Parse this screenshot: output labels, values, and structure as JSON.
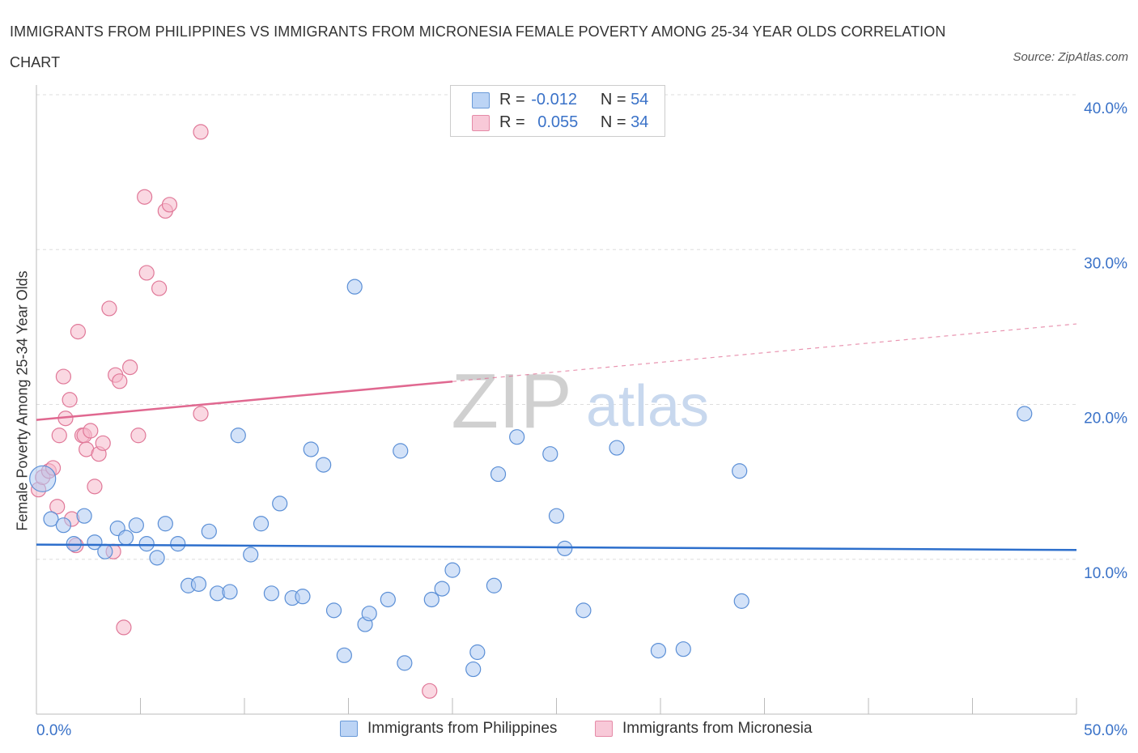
{
  "title": "IMMIGRANTS FROM PHILIPPINES VS IMMIGRANTS FROM MICRONESIA FEMALE POVERTY AMONG 25-34 YEAR OLDS CORRELATION CHART",
  "source": "Source: ZipAtlas.com",
  "watermark": {
    "zip": "ZIP",
    "atlas": "atlas"
  },
  "legend": {
    "r_label": "R =",
    "n_label": "N =",
    "rows": [
      {
        "r": "-0.012",
        "n": "54"
      },
      {
        "r": "0.055",
        "n": "34"
      }
    ]
  },
  "colors": {
    "blue_fill": "#aecbf2",
    "blue_stroke": "#5b8fd6",
    "blue_line": "#2d6fcc",
    "pink_fill": "#f5b8cb",
    "pink_stroke": "#e07898",
    "pink_line": "#e06890",
    "axis_text": "#3a72c8"
  },
  "chart_data": {
    "type": "scatter",
    "title": "IMMIGRANTS FROM PHILIPPINES VS IMMIGRANTS FROM MICRONESIA FEMALE POVERTY AMONG 25-34 YEAR OLDS CORRELATION CHART",
    "xlabel": "",
    "ylabel": "Female Poverty Among 25-34 Year Olds",
    "xlim": [
      0,
      50
    ],
    "ylim": [
      0,
      40
    ],
    "x_tick_labels": [
      "0.0%",
      "50.0%"
    ],
    "y_ticks": [
      10,
      20,
      30,
      40
    ],
    "y_tick_labels": [
      "10.0%",
      "20.0%",
      "30.0%",
      "40.0%"
    ],
    "grid": true,
    "legend_position": "top-center",
    "series": [
      {
        "name": "Immigrants from Philippines",
        "color": "blue",
        "r": -0.012,
        "n": 54,
        "trend": {
          "x": [
            0,
            50
          ],
          "y": [
            10.95,
            10.6
          ],
          "dashed_from": null
        },
        "points": [
          [
            0.3,
            15.2
          ],
          [
            0.7,
            12.6
          ],
          [
            1.3,
            12.2
          ],
          [
            1.8,
            11.0
          ],
          [
            2.3,
            12.8
          ],
          [
            2.8,
            11.1
          ],
          [
            3.3,
            10.5
          ],
          [
            3.9,
            12.0
          ],
          [
            4.3,
            11.4
          ],
          [
            4.8,
            12.2
          ],
          [
            5.3,
            11.0
          ],
          [
            5.8,
            10.1
          ],
          [
            6.2,
            12.3
          ],
          [
            6.8,
            11.0
          ],
          [
            7.3,
            8.3
          ],
          [
            7.8,
            8.4
          ],
          [
            8.3,
            11.8
          ],
          [
            8.7,
            7.8
          ],
          [
            9.3,
            7.9
          ],
          [
            9.7,
            18.0
          ],
          [
            10.3,
            10.3
          ],
          [
            10.8,
            12.3
          ],
          [
            11.3,
            7.8
          ],
          [
            11.7,
            13.6
          ],
          [
            12.3,
            7.5
          ],
          [
            12.8,
            7.6
          ],
          [
            13.2,
            17.1
          ],
          [
            13.8,
            16.1
          ],
          [
            14.3,
            6.7
          ],
          [
            14.8,
            3.8
          ],
          [
            15.3,
            27.6
          ],
          [
            15.8,
            5.8
          ],
          [
            16.0,
            6.5
          ],
          [
            16.9,
            7.4
          ],
          [
            17.5,
            17.0
          ],
          [
            17.7,
            3.3
          ],
          [
            19.0,
            7.4
          ],
          [
            19.5,
            8.1
          ],
          [
            20.0,
            9.3
          ],
          [
            21.0,
            2.9
          ],
          [
            21.2,
            4.0
          ],
          [
            22.0,
            8.3
          ],
          [
            22.2,
            15.5
          ],
          [
            23.1,
            17.9
          ],
          [
            24.7,
            16.8
          ],
          [
            25.0,
            12.8
          ],
          [
            25.4,
            10.7
          ],
          [
            26.3,
            6.7
          ],
          [
            27.9,
            17.2
          ],
          [
            29.9,
            4.1
          ],
          [
            31.1,
            4.2
          ],
          [
            33.8,
            15.7
          ],
          [
            33.9,
            7.3
          ],
          [
            47.5,
            19.4
          ]
        ]
      },
      {
        "name": "Immigrants from Micronesia",
        "color": "pink",
        "r": 0.055,
        "n": 34,
        "trend": {
          "x": [
            0,
            50
          ],
          "y": [
            19.0,
            25.2
          ],
          "dashed_from": 20
        },
        "points": [
          [
            0.1,
            14.5
          ],
          [
            0.3,
            15.3
          ],
          [
            0.6,
            15.7
          ],
          [
            0.8,
            15.9
          ],
          [
            1.0,
            13.4
          ],
          [
            1.1,
            18.0
          ],
          [
            1.3,
            21.8
          ],
          [
            1.4,
            19.1
          ],
          [
            1.6,
            20.3
          ],
          [
            1.7,
            12.6
          ],
          [
            1.9,
            10.9
          ],
          [
            2.0,
            24.7
          ],
          [
            2.2,
            18.0
          ],
          [
            2.3,
            18.0
          ],
          [
            2.4,
            17.1
          ],
          [
            2.6,
            18.3
          ],
          [
            2.8,
            14.7
          ],
          [
            3.0,
            16.8
          ],
          [
            3.2,
            17.5
          ],
          [
            3.5,
            26.2
          ],
          [
            3.7,
            10.5
          ],
          [
            3.8,
            21.9
          ],
          [
            4.0,
            21.5
          ],
          [
            4.2,
            5.6
          ],
          [
            4.5,
            22.4
          ],
          [
            4.9,
            18.0
          ],
          [
            5.2,
            33.4
          ],
          [
            5.3,
            28.5
          ],
          [
            5.9,
            27.5
          ],
          [
            6.2,
            32.5
          ],
          [
            6.4,
            32.9
          ],
          [
            7.9,
            19.4
          ],
          [
            7.9,
            37.6
          ],
          [
            18.9,
            1.5
          ]
        ]
      }
    ]
  }
}
